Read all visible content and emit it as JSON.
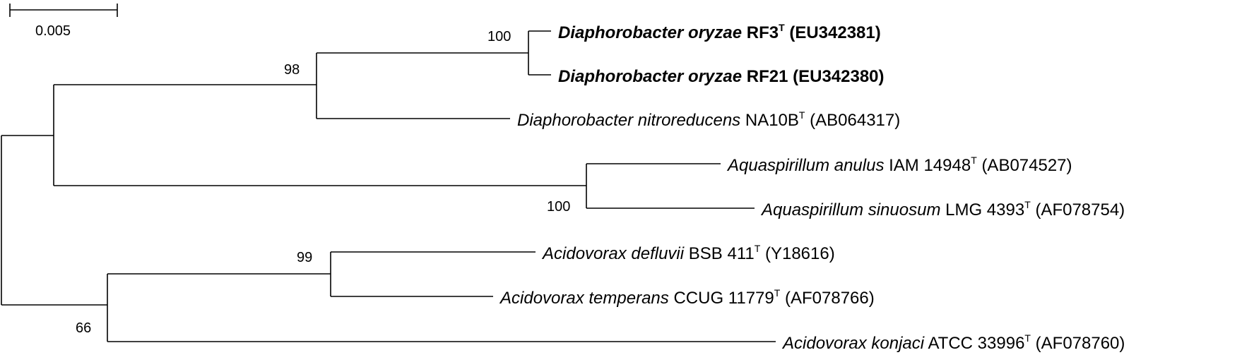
{
  "scale_bar": {
    "label": "0.005"
  },
  "taxa": [
    {
      "species": "Diaphorobacter oryzae",
      "strain": "RF3",
      "type_mark": "T",
      "accession": "(EU342381)",
      "bold": true
    },
    {
      "species": "Diaphorobacter oryzae",
      "strain": "RF21",
      "type_mark": "",
      "accession": "(EU342380)",
      "bold": true
    },
    {
      "species": "Diaphorobacter nitroreducens",
      "strain": "NA10B",
      "type_mark": "T",
      "accession": "(AB064317)",
      "bold": false
    },
    {
      "species": "Aquaspirillum anulus",
      "strain": "IAM 14948",
      "type_mark": "T",
      "accession": "(AB074527)",
      "bold": false
    },
    {
      "species": "Aquaspirillum sinuosum",
      "strain": "LMG 4393",
      "type_mark": "T",
      "accession": "(AF078754)",
      "bold": false
    },
    {
      "species": "Acidovorax defluvii",
      "strain": "BSB 411",
      "type_mark": "T",
      "accession": "(Y18616)",
      "bold": false
    },
    {
      "species": "Acidovorax temperans",
      "strain": "CCUG 11779",
      "type_mark": "T",
      "accession": "(AF078766)",
      "bold": false
    },
    {
      "species": "Acidovorax konjaci",
      "strain": "ATCC 33996",
      "type_mark": "T",
      "accession": "(AF078760)",
      "bold": false
    }
  ],
  "bootstrap": [
    "100",
    "98",
    "100",
    "99",
    "66"
  ]
}
